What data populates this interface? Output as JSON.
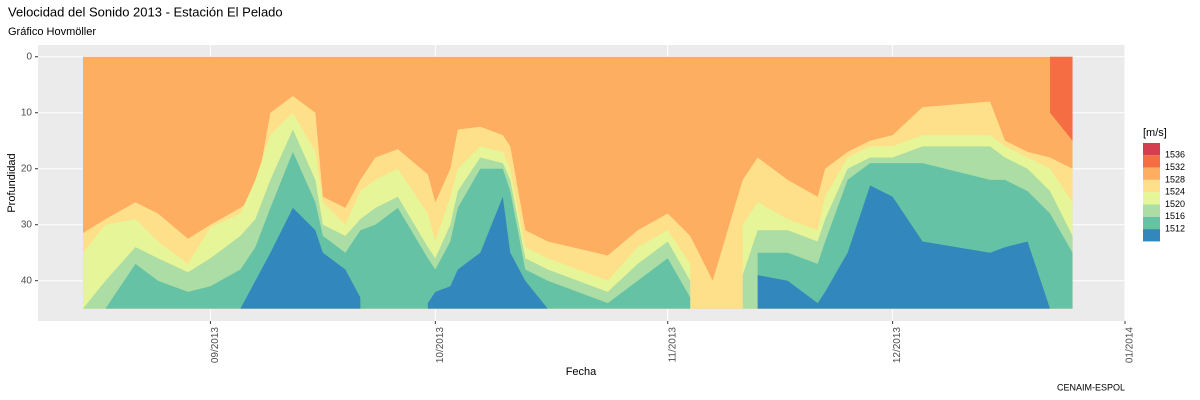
{
  "chart_data": {
    "type": "hovmoller",
    "title": "Velocidad del Sonido 2013 - Estación El Pelado",
    "subtitle": "Gráfico Hovmöller",
    "xlabel": "Fecha",
    "ylabel": "Profundidad",
    "caption": "CENAIM-ESPOL",
    "x": [
      "2013-08-15",
      "2013-08-18",
      "2013-08-22",
      "2013-08-25",
      "2013-08-29",
      "2013-09-01",
      "2013-09-05",
      "2013-09-07",
      "2013-09-09",
      "2013-09-12",
      "2013-09-15",
      "2013-09-16",
      "2013-09-19",
      "2013-09-21",
      "2013-09-23",
      "2013-09-26",
      "2013-09-30",
      "2013-10-01",
      "2013-10-03",
      "2013-10-04",
      "2013-10-07",
      "2013-10-10",
      "2013-10-11",
      "2013-10-13",
      "2013-10-16",
      "2013-10-24",
      "2013-10-28",
      "2013-11-01",
      "2013-11-04",
      "2013-11-07",
      "2013-11-11",
      "2013-11-13",
      "2013-11-17",
      "2013-11-21",
      "2013-11-22",
      "2013-11-25",
      "2013-11-28",
      "2013-12-01",
      "2013-12-05",
      "2013-12-14",
      "2013-12-16",
      "2013-12-19",
      "2013-12-22",
      "2013-12-25"
    ],
    "depth_extent": [
      0,
      45
    ],
    "base_color": "#FDAE61",
    "series": [
      {
        "color": "#F46D43",
        "side": "above",
        "values": [
          null,
          null,
          null,
          null,
          null,
          null,
          null,
          null,
          null,
          null,
          null,
          null,
          null,
          null,
          null,
          null,
          null,
          null,
          null,
          null,
          null,
          null,
          null,
          null,
          null,
          null,
          null,
          null,
          null,
          null,
          null,
          null,
          null,
          null,
          null,
          null,
          null,
          null,
          null,
          null,
          null,
          null,
          10,
          15
        ]
      },
      {
        "color": "#FEE08B",
        "side": "below",
        "values": [
          31.5,
          29,
          26,
          28,
          32.5,
          30,
          27,
          25,
          10,
          7,
          10,
          25,
          27,
          22,
          18,
          16.5,
          21,
          26,
          20,
          13,
          12.5,
          14,
          16,
          31,
          33,
          35.5,
          31,
          28,
          32,
          40,
          22,
          18,
          22,
          25,
          20,
          17,
          15,
          14,
          9,
          8,
          15,
          17,
          18,
          20
        ]
      },
      {
        "color": "#E6F598",
        "side": "below",
        "values": [
          35,
          30,
          29,
          33,
          37,
          30.5,
          28,
          22,
          14,
          10,
          17,
          26,
          30,
          24,
          22,
          20,
          28,
          33,
          25,
          20,
          16,
          17,
          20,
          34,
          36,
          40,
          34,
          31,
          37,
          null,
          30,
          26,
          29,
          31,
          25,
          18,
          16,
          16,
          14,
          14,
          16,
          18,
          20,
          26
        ]
      },
      {
        "color": "#ABDDA4",
        "side": "below",
        "values": [
          45,
          40,
          34,
          36,
          38.5,
          36,
          32,
          29,
          22,
          13,
          22,
          30,
          32,
          29,
          27,
          25,
          34,
          36,
          30,
          24,
          18,
          19,
          22,
          36,
          38,
          42,
          37,
          33,
          40,
          null,
          39,
          31,
          31,
          33,
          29,
          20,
          18,
          18,
          16,
          16,
          18,
          20,
          24,
          32
        ]
      },
      {
        "color": "#66C2A5",
        "side": "below",
        "values": [
          null,
          45,
          37,
          40,
          42,
          41,
          38,
          34,
          27,
          17,
          26,
          32,
          35,
          31,
          30,
          27,
          36,
          38,
          33,
          27,
          20,
          20,
          24,
          38,
          40,
          44,
          40,
          36,
          43,
          null,
          null,
          35,
          35,
          37,
          33,
          22,
          19,
          19,
          19,
          22,
          22,
          24,
          28,
          35
        ]
      },
      {
        "color": "#3288BD",
        "side": "below",
        "values": [
          null,
          null,
          null,
          null,
          null,
          null,
          45,
          40,
          35,
          27,
          31,
          35,
          38,
          43,
          null,
          null,
          44,
          42,
          41,
          38,
          35,
          25,
          35,
          40,
          45,
          null,
          null,
          null,
          null,
          null,
          null,
          39,
          40,
          44,
          42,
          35,
          23,
          25,
          33,
          35,
          34,
          33,
          45,
          null
        ]
      }
    ],
    "xlim": [
      "2013-08-09",
      "2014-01-01"
    ],
    "xticks": [
      {
        "value": "2013-09-01",
        "label": "09/2013"
      },
      {
        "value": "2013-10-01",
        "label": "10/2013"
      },
      {
        "value": "2013-11-01",
        "label": "11/2013"
      },
      {
        "value": "2013-12-01",
        "label": "12/2013"
      },
      {
        "value": "2014-01-01",
        "label": "01/2014"
      }
    ],
    "ylim": [
      -2.1,
      47.2
    ],
    "y_reversed": true,
    "yticks": [
      0,
      10,
      20,
      30,
      40
    ],
    "grid": true,
    "legend": {
      "title": "[m/s]",
      "labels": [
        1536,
        1532,
        1528,
        1524,
        1520,
        1516,
        1512
      ],
      "colors": [
        "#D53E4F",
        "#F46D43",
        "#FDAE61",
        "#FEE08B",
        "#E6F598",
        "#ABDDA4",
        "#66C2A5",
        "#3288BD"
      ]
    }
  }
}
